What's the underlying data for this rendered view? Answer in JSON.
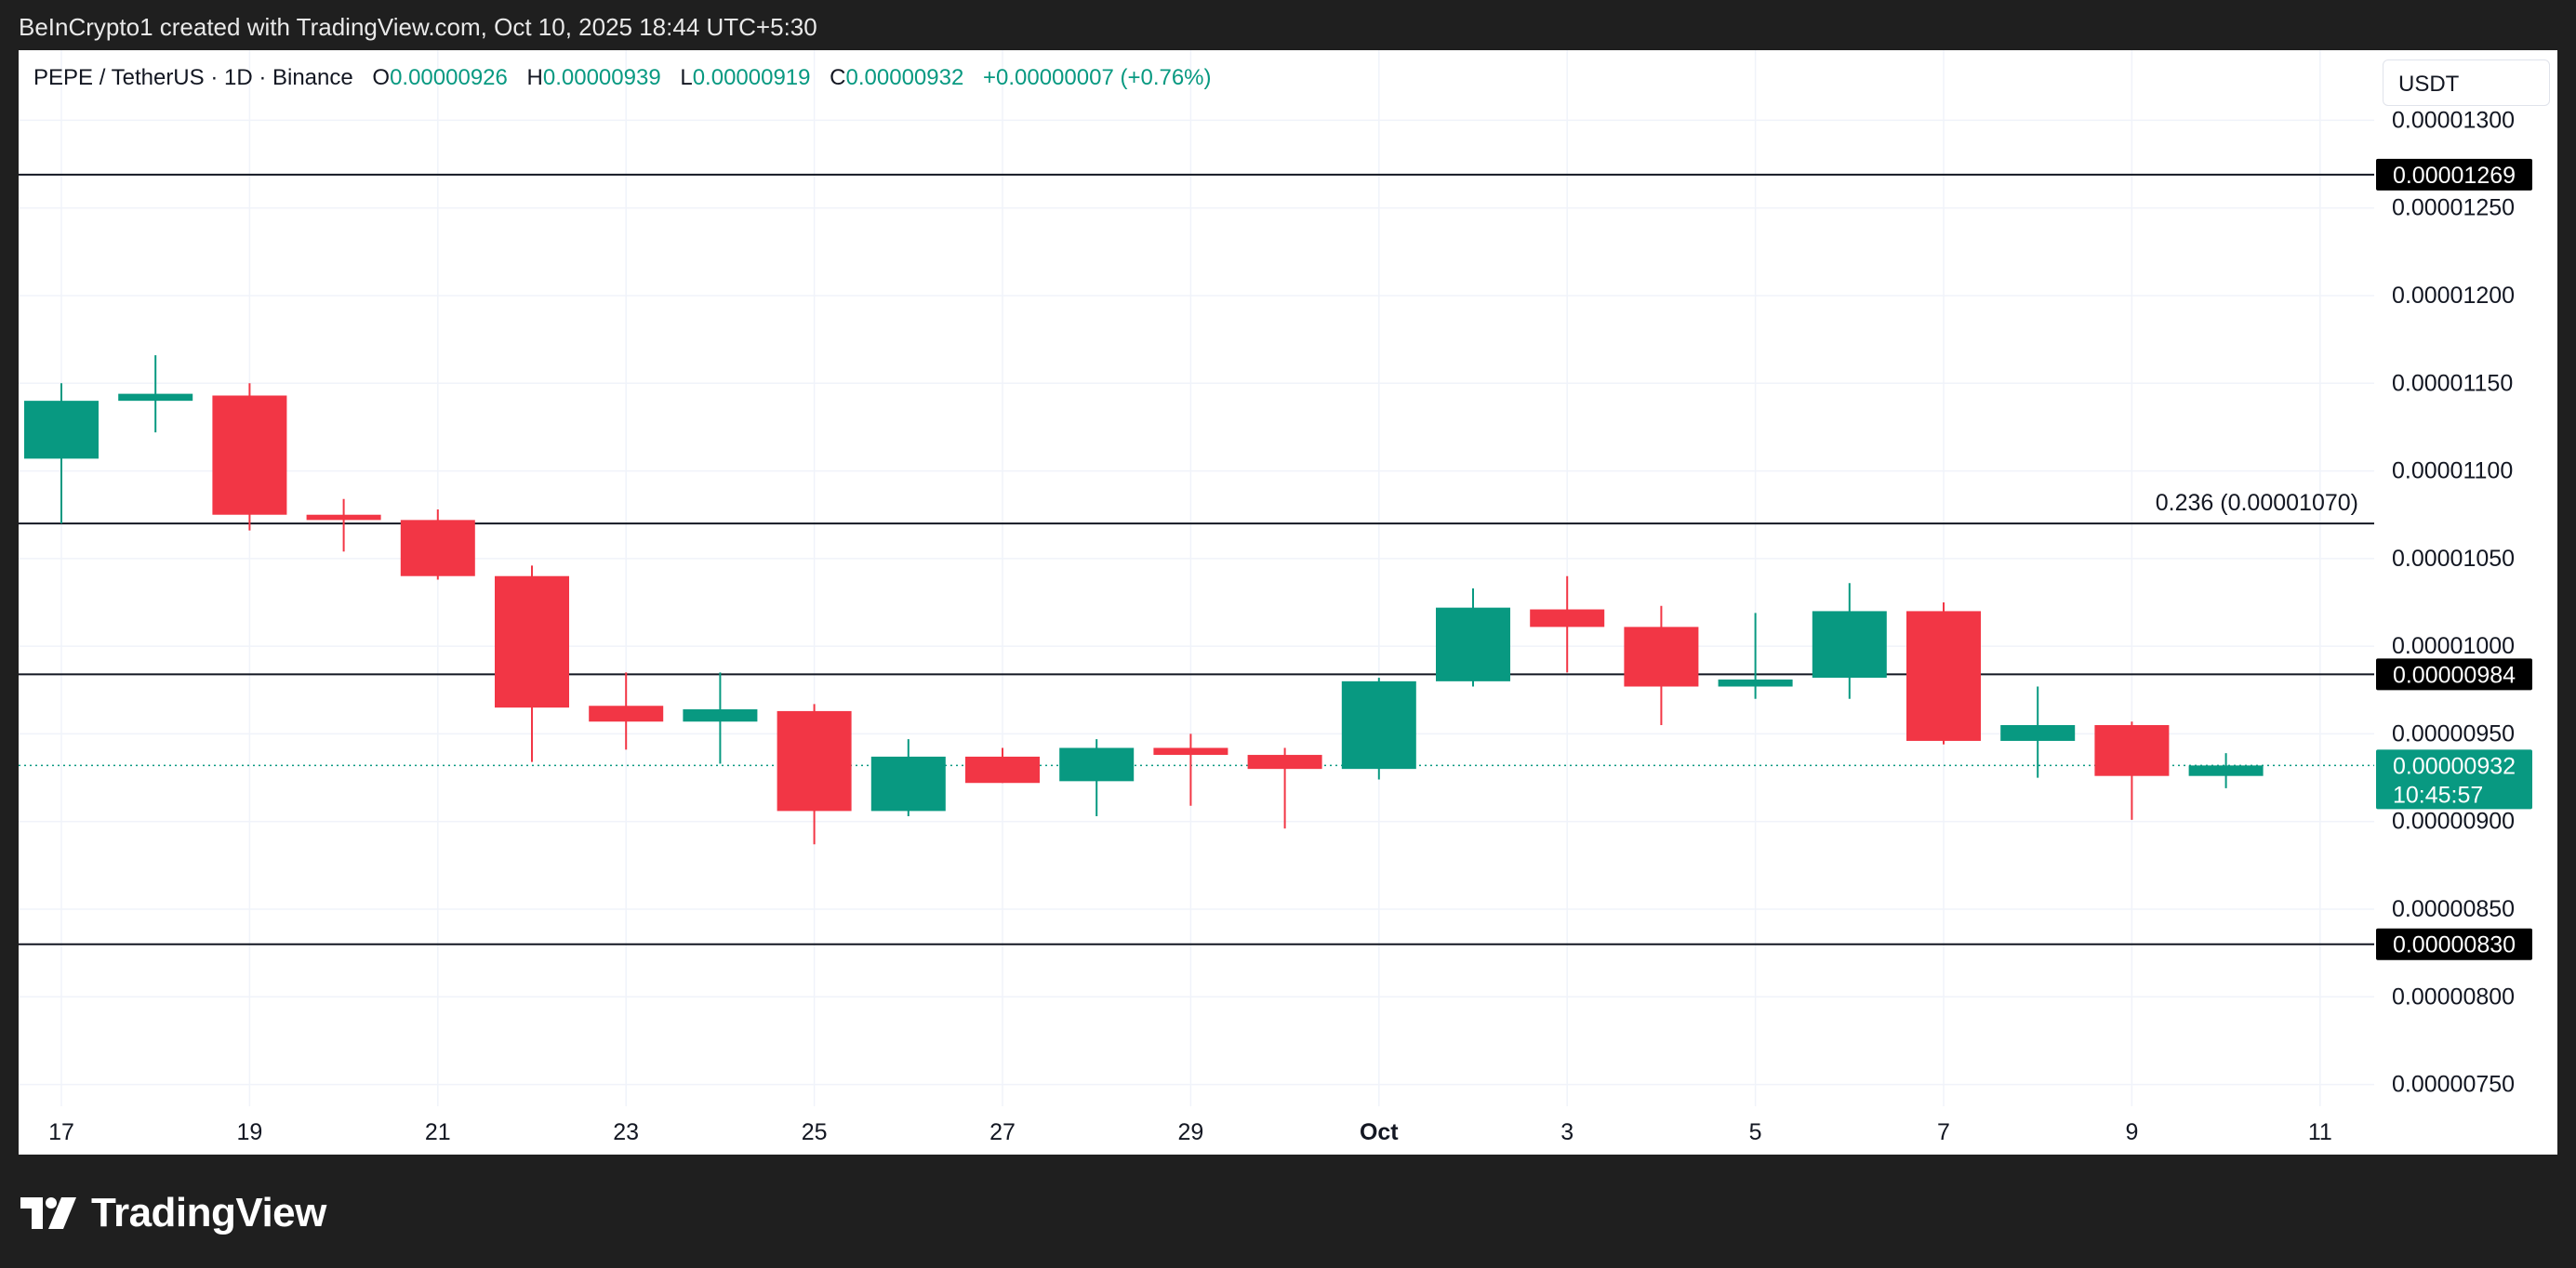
{
  "header": {
    "text": "BeInCrypto1 created with TradingView.com, Oct 10, 2025 18:44 UTC+5:30"
  },
  "legend": {
    "symbol": "PEPE / TetherUS · 1D · Binance",
    "o_label": "O",
    "o_value": "0.00000926",
    "h_label": "H",
    "h_value": "0.00000939",
    "l_label": "L",
    "l_value": "0.00000919",
    "c_label": "C",
    "c_value": "0.00000932",
    "change": "+0.00000007 (+0.76%)"
  },
  "unit_selector": "USDT",
  "footer": {
    "brand": "TradingView"
  },
  "colors": {
    "up": "#089981",
    "down": "#f23645",
    "line": "#131722",
    "grid": "#f0f3fa"
  },
  "chart_data": {
    "type": "candlestick",
    "y_scale": "linear",
    "ylim": [
      7.1e-06,
      1.34e-05
    ],
    "y_ticks": [
      {
        "value": 1.3e-05,
        "label": "0.00001300"
      },
      {
        "value": 1.25e-05,
        "label": "0.00001250"
      },
      {
        "value": 1.2e-05,
        "label": "0.00001200"
      },
      {
        "value": 1.15e-05,
        "label": "0.00001150"
      },
      {
        "value": 1.1e-05,
        "label": "0.00001100"
      },
      {
        "value": 1.05e-05,
        "label": "0.00001050"
      },
      {
        "value": 1e-05,
        "label": "0.00001000"
      },
      {
        "value": 9.5e-06,
        "label": "0.00000950"
      },
      {
        "value": 9e-06,
        "label": "0.00000900"
      },
      {
        "value": 8.5e-06,
        "label": "0.00000850"
      },
      {
        "value": 8e-06,
        "label": "0.00000800"
      },
      {
        "value": 7.5e-06,
        "label": "0.00000750"
      }
    ],
    "x_ticks": [
      {
        "index": 0,
        "label": "17",
        "bold": false
      },
      {
        "index": 2,
        "label": "19",
        "bold": false
      },
      {
        "index": 4,
        "label": "21",
        "bold": false
      },
      {
        "index": 6,
        "label": "23",
        "bold": false
      },
      {
        "index": 8,
        "label": "25",
        "bold": false
      },
      {
        "index": 10,
        "label": "27",
        "bold": false
      },
      {
        "index": 12,
        "label": "29",
        "bold": false
      },
      {
        "index": 14,
        "label": "Oct",
        "bold": true
      },
      {
        "index": 16,
        "label": "3",
        "bold": false
      },
      {
        "index": 18,
        "label": "5",
        "bold": false
      },
      {
        "index": 20,
        "label": "7",
        "bold": false
      },
      {
        "index": 22,
        "label": "9",
        "bold": false
      },
      {
        "index": 24,
        "label": "11",
        "bold": false
      }
    ],
    "candles": [
      {
        "date": "Sep 17",
        "o": 1.107e-05,
        "h": 1.15e-05,
        "l": 1.07e-05,
        "c": 1.14e-05
      },
      {
        "date": "Sep 18",
        "o": 1.14e-05,
        "h": 1.166e-05,
        "l": 1.122e-05,
        "c": 1.144e-05
      },
      {
        "date": "Sep 19",
        "o": 1.143e-05,
        "h": 1.15e-05,
        "l": 1.066e-05,
        "c": 1.075e-05
      },
      {
        "date": "Sep 20",
        "o": 1.075e-05,
        "h": 1.084e-05,
        "l": 1.054e-05,
        "c": 1.072e-05
      },
      {
        "date": "Sep 21",
        "o": 1.072e-05,
        "h": 1.078e-05,
        "l": 1.038e-05,
        "c": 1.04e-05
      },
      {
        "date": "Sep 22",
        "o": 1.04e-05,
        "h": 1.046e-05,
        "l": 9.34e-06,
        "c": 9.65e-06
      },
      {
        "date": "Sep 23",
        "o": 9.66e-06,
        "h": 9.85e-06,
        "l": 9.41e-06,
        "c": 9.57e-06
      },
      {
        "date": "Sep 24",
        "o": 9.57e-06,
        "h": 9.85e-06,
        "l": 9.33e-06,
        "c": 9.64e-06
      },
      {
        "date": "Sep 25",
        "o": 9.63e-06,
        "h": 9.67e-06,
        "l": 8.87e-06,
        "c": 9.06e-06
      },
      {
        "date": "Sep 26",
        "o": 9.06e-06,
        "h": 9.47e-06,
        "l": 9.03e-06,
        "c": 9.37e-06
      },
      {
        "date": "Sep 27",
        "o": 9.37e-06,
        "h": 9.42e-06,
        "l": 9.22e-06,
        "c": 9.22e-06
      },
      {
        "date": "Sep 28",
        "o": 9.23e-06,
        "h": 9.47e-06,
        "l": 9.03e-06,
        "c": 9.42e-06
      },
      {
        "date": "Sep 29",
        "o": 9.42e-06,
        "h": 9.5e-06,
        "l": 9.09e-06,
        "c": 9.38e-06
      },
      {
        "date": "Sep 30",
        "o": 9.38e-06,
        "h": 9.42e-06,
        "l": 8.96e-06,
        "c": 9.3e-06
      },
      {
        "date": "Oct 1",
        "o": 9.3e-06,
        "h": 9.82e-06,
        "l": 9.24e-06,
        "c": 9.8e-06
      },
      {
        "date": "Oct 2",
        "o": 9.8e-06,
        "h": 1.033e-05,
        "l": 9.77e-06,
        "c": 1.022e-05
      },
      {
        "date": "Oct 3",
        "o": 1.021e-05,
        "h": 1.04e-05,
        "l": 9.85e-06,
        "c": 1.011e-05
      },
      {
        "date": "Oct 4",
        "o": 1.011e-05,
        "h": 1.023e-05,
        "l": 9.55e-06,
        "c": 9.77e-06
      },
      {
        "date": "Oct 5",
        "o": 9.77e-06,
        "h": 1.019e-05,
        "l": 9.7e-06,
        "c": 9.81e-06
      },
      {
        "date": "Oct 6",
        "o": 9.82e-06,
        "h": 1.036e-05,
        "l": 9.7e-06,
        "c": 1.02e-05
      },
      {
        "date": "Oct 7",
        "o": 1.02e-05,
        "h": 1.025e-05,
        "l": 9.44e-06,
        "c": 9.46e-06
      },
      {
        "date": "Oct 8",
        "o": 9.46e-06,
        "h": 9.77e-06,
        "l": 9.25e-06,
        "c": 9.55e-06
      },
      {
        "date": "Oct 9",
        "o": 9.55e-06,
        "h": 9.57e-06,
        "l": 9.01e-06,
        "c": 9.26e-06
      },
      {
        "date": "Oct 10",
        "o": 9.26e-06,
        "h": 9.39e-06,
        "l": 9.19e-06,
        "c": 9.32e-06
      }
    ],
    "horizontal_lines": [
      {
        "value": 1.269e-05,
        "label": "0.00001269",
        "fib_label": ""
      },
      {
        "value": 1.07e-05,
        "label": "",
        "fib_label": "0.236 (0.00001070)"
      },
      {
        "value": 9.84e-06,
        "label": "0.00000984",
        "fib_label": ""
      },
      {
        "value": 8.3e-06,
        "label": "0.00000830",
        "fib_label": ""
      }
    ],
    "last_price": {
      "value": 9.32e-06,
      "label": "0.00000932",
      "countdown": "10:45:57"
    }
  }
}
